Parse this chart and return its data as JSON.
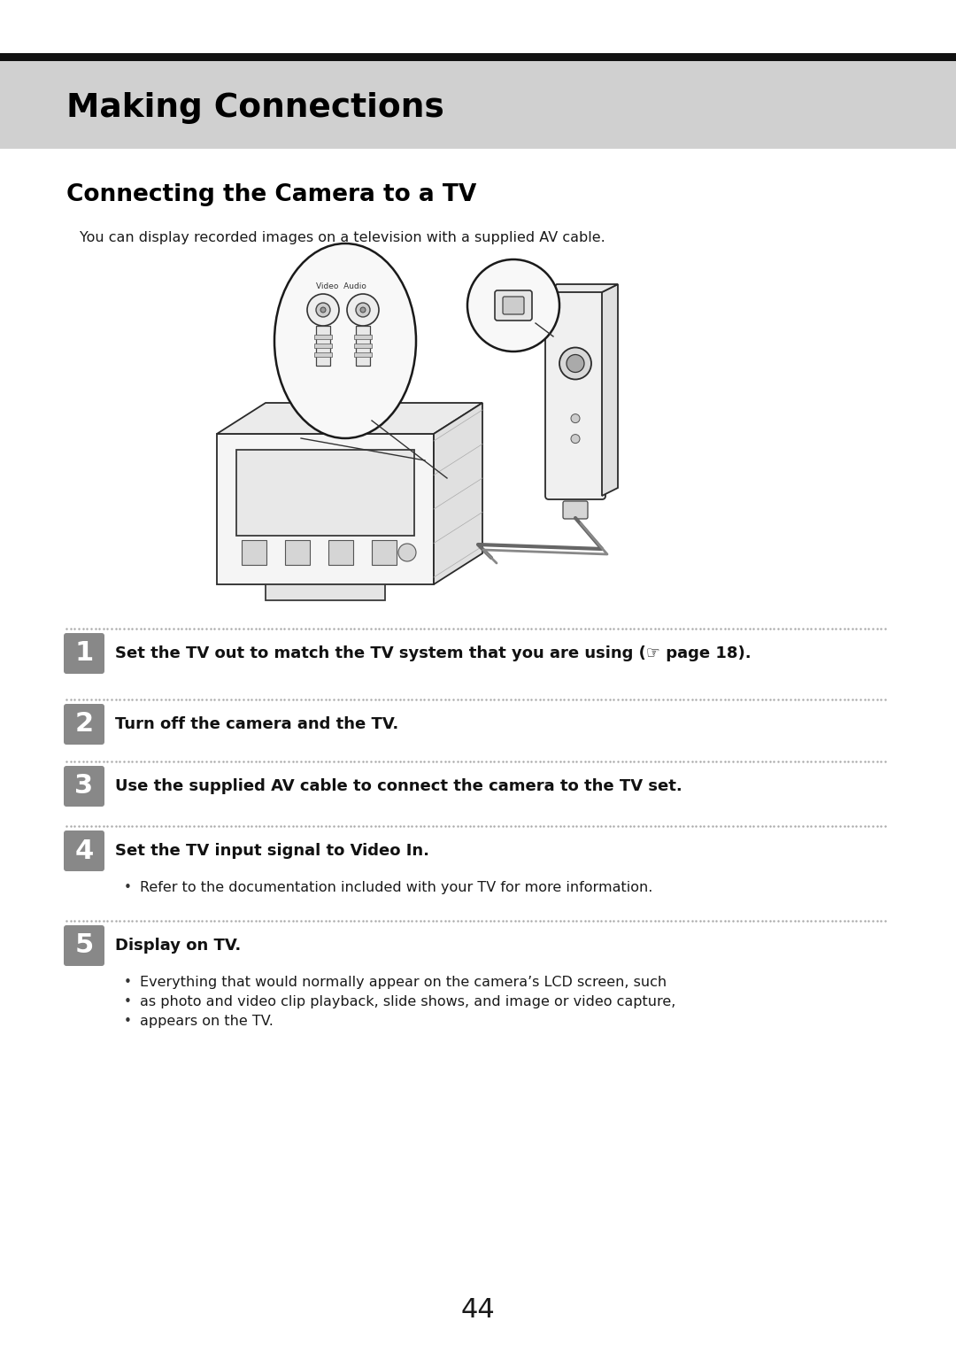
{
  "bg_color": "#ffffff",
  "header_bar_color": "#111111",
  "header_bg_color": "#d0d0d0",
  "header_text": "Making Connections",
  "header_text_color": "#000000",
  "section_title": "Connecting the Camera to a TV",
  "intro_text": "You can display recorded images on a television with a supplied AV cable.",
  "step_box_color": "#888888",
  "step_text_color": "#ffffff",
  "page_number": "44",
  "steps": [
    {
      "number": "1",
      "bold_text": "Set the TV out to match the TV system that you are using (☞ page 18).",
      "bullets": []
    },
    {
      "number": "2",
      "bold_text": "Turn off the camera and the TV.",
      "bullets": []
    },
    {
      "number": "3",
      "bold_text": "Use the supplied AV cable to connect the camera to the TV set.",
      "bullets": []
    },
    {
      "number": "4",
      "bold_text": "Set the TV input signal to Video In.",
      "bullets": [
        "Refer to the documentation included with your TV for more information."
      ]
    },
    {
      "number": "5",
      "bold_text": "Display on TV.",
      "bullets": [
        "Everything that would normally appear on the camera’s LCD screen, such",
        "as photo and video clip playback, slide shows, and image or video capture,",
        "appears on the TV."
      ]
    }
  ]
}
